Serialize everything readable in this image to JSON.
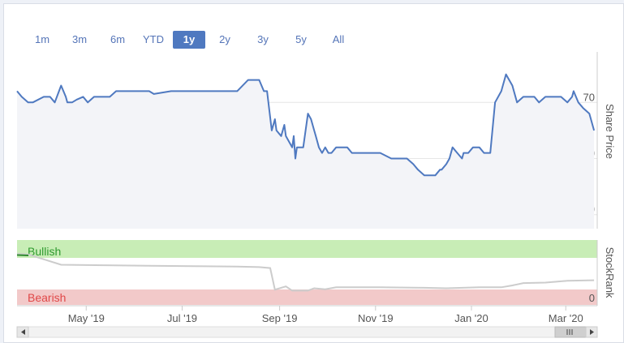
{
  "range_selector": {
    "buttons": [
      "1m",
      "3m",
      "6m",
      "YTD",
      "1y",
      "2y",
      "3y",
      "5y",
      "All"
    ],
    "active": "1y"
  },
  "colors": {
    "line": "#4f79c0",
    "bullish_band": "#c8edb6",
    "bearish_band": "#f2c9c9",
    "bullish_text": "#2f9a2f",
    "bearish_text": "#e04848",
    "stockrank_line": "#cccccc"
  },
  "chart_data": [
    {
      "type": "area",
      "ylabel": "Share Price",
      "yticks": [
        50,
        60,
        70
      ],
      "ylim": [
        47.5,
        79
      ],
      "grid": true,
      "xlim": [
        "2019-03-18",
        "2020-03-21"
      ],
      "series": [
        {
          "x": [
            "2019-03-18",
            "2019-03-21",
            "2019-03-25",
            "2019-03-28",
            "2019-04-04",
            "2019-04-08",
            "2019-04-11",
            "2019-04-15",
            "2019-04-18",
            "2019-04-19",
            "2019-04-22",
            "2019-04-25",
            "2019-04-29",
            "2019-05-02",
            "2019-05-06",
            "2019-05-09",
            "2019-05-13",
            "2019-05-16",
            "2019-05-20",
            "2019-05-23",
            "2019-06-03",
            "2019-06-10",
            "2019-06-13",
            "2019-06-24",
            "2019-07-08",
            "2019-07-22",
            "2019-08-05",
            "2019-08-12",
            "2019-08-19",
            "2019-08-22",
            "2019-08-24",
            "2019-08-27",
            "2019-08-29",
            "2019-08-30",
            "2019-09-02",
            "2019-09-04",
            "2019-09-05",
            "2019-09-09",
            "2019-09-10",
            "2019-09-11",
            "2019-09-12",
            "2019-09-16",
            "2019-09-19",
            "2019-09-21",
            "2019-09-23",
            "2019-09-24",
            "2019-09-26",
            "2019-09-28",
            "2019-09-30",
            "2019-10-02",
            "2019-10-04",
            "2019-10-07",
            "2019-10-10",
            "2019-10-14",
            "2019-10-17",
            "2019-10-21",
            "2019-10-24",
            "2019-10-28",
            "2019-11-04",
            "2019-11-11",
            "2019-11-14",
            "2019-11-18",
            "2019-11-21",
            "2019-11-25",
            "2019-11-28",
            "2019-12-02",
            "2019-12-05",
            "2019-12-09",
            "2019-12-12",
            "2019-12-13",
            "2019-12-16",
            "2019-12-18",
            "2019-12-20",
            "2019-12-23",
            "2019-12-26",
            "2019-12-27",
            "2019-12-30",
            "2020-01-02",
            "2020-01-06",
            "2020-01-09",
            "2020-01-13",
            "2020-01-16",
            "2020-01-20",
            "2020-01-21",
            "2020-01-23",
            "2020-01-27",
            "2020-01-30",
            "2020-02-03",
            "2020-02-06",
            "2020-02-10",
            "2020-02-13",
            "2020-02-17",
            "2020-02-20",
            "2020-02-24",
            "2020-02-27",
            "2020-03-02",
            "2020-03-05",
            "2020-03-06",
            "2020-03-09",
            "2020-03-12",
            "2020-03-16",
            "2020-03-19"
          ],
          "y": [
            72,
            71,
            70,
            70,
            71,
            71,
            70,
            73,
            71,
            70,
            70,
            70.5,
            71,
            70,
            71,
            71,
            71,
            71,
            72,
            72,
            72,
            72,
            71.5,
            72,
            72,
            72,
            72,
            74,
            74,
            72,
            72,
            65,
            67,
            65,
            64,
            66,
            64,
            62,
            64,
            60,
            62,
            62,
            68,
            67,
            65,
            64,
            62,
            61,
            62,
            61,
            61,
            62,
            62,
            62,
            61,
            61,
            61,
            61,
            61,
            60,
            60,
            60,
            60,
            59,
            58,
            57,
            57,
            57,
            58,
            58,
            59,
            60,
            62,
            61,
            60,
            61,
            61,
            62,
            62,
            61,
            61,
            70,
            72,
            73,
            75,
            73,
            70,
            71,
            71,
            71,
            70,
            71,
            71,
            71,
            71,
            70,
            71,
            72,
            70,
            69,
            68,
            65
          ]
        }
      ]
    },
    {
      "type": "line",
      "ylabel": "StockRank",
      "yticks": [
        0
      ],
      "ylim": [
        0,
        100
      ],
      "bands": [
        {
          "label": "Bullish"
        },
        {
          "label": "Bearish"
        }
      ],
      "xticks": [
        "May '19",
        "Jul '19",
        "Sep '19",
        "Nov '19",
        "Jan '20",
        "Mar '20"
      ],
      "xtick_dates": [
        "2019-05-01",
        "2019-07-01",
        "2019-09-01",
        "2019-11-01",
        "2020-01-01",
        "2020-03-01"
      ],
      "series": [
        {
          "x": [
            "2019-03-18",
            "2019-03-25",
            "2019-04-15",
            "2019-05-13",
            "2019-06-10",
            "2019-07-08",
            "2019-08-05",
            "2019-08-19",
            "2019-08-26",
            "2019-08-29",
            "2019-09-05",
            "2019-09-09",
            "2019-09-19",
            "2019-09-23",
            "2019-09-30",
            "2019-10-07",
            "2019-10-14",
            "2019-11-04",
            "2019-12-02",
            "2019-12-16",
            "2020-01-06",
            "2020-01-20",
            "2020-01-27",
            "2020-02-03",
            "2020-02-17",
            "2020-03-02",
            "2020-03-19"
          ],
          "y": [
            98,
            97,
            75,
            74,
            73,
            72,
            71,
            70,
            68,
            22,
            29,
            20,
            20,
            25,
            23,
            27,
            27,
            27,
            26,
            25,
            27,
            27,
            31,
            36,
            37,
            41,
            42
          ]
        }
      ]
    }
  ]
}
